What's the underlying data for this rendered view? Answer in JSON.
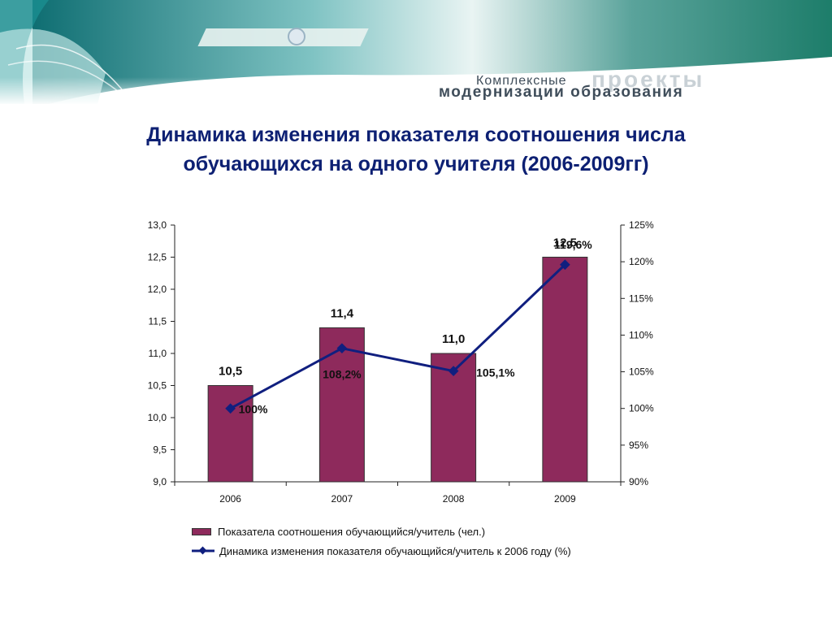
{
  "banner": {
    "line1": "Комплексные",
    "line2": "проекты",
    "line3": "модернизации образования"
  },
  "title": {
    "line1": "Динамика изменения показателя соотношения числа",
    "line2": "обучающихся на одного учителя (2006-2009гг)"
  },
  "colors": {
    "bar": "#8e2a5c",
    "line": "#101f7f",
    "title": "#0d2073"
  },
  "chart_data": {
    "type": "bar",
    "categories": [
      "2006",
      "2007",
      "2008",
      "2009"
    ],
    "series": [
      {
        "name": "Показатела соотношения обучающийся/учитель (чел.)",
        "type": "bar",
        "axis": "left",
        "values": [
          10.5,
          11.4,
          11.0,
          12.5
        ],
        "labels": [
          "10,5",
          "11,4",
          "11,0",
          "12,5"
        ]
      },
      {
        "name": "Динамика изменения показателя обучающийся/учитель  к 2006 году (%)",
        "type": "line",
        "axis": "right",
        "values": [
          100,
          108.2,
          105.1,
          119.6
        ],
        "labels": [
          "100%",
          "108,2%",
          "105,1%",
          "119,6%"
        ]
      }
    ],
    "y_left": {
      "ylim": [
        9.0,
        13.0
      ],
      "ticks": [
        9.0,
        9.5,
        10.0,
        10.5,
        11.0,
        11.5,
        12.0,
        12.5,
        13.0
      ],
      "tick_labels": [
        "9,0",
        "9,5",
        "10,0",
        "10,5",
        "11,0",
        "11,5",
        "12,0",
        "12,5",
        "13,0"
      ]
    },
    "y_right": {
      "ylim": [
        90,
        125
      ],
      "ticks": [
        90,
        95,
        100,
        105,
        110,
        115,
        120,
        125
      ],
      "tick_labels": [
        "90%",
        "95%",
        "100%",
        "105%",
        "110%",
        "115%",
        "120%",
        "125%"
      ]
    },
    "grid": false,
    "legend_position": "bottom"
  }
}
